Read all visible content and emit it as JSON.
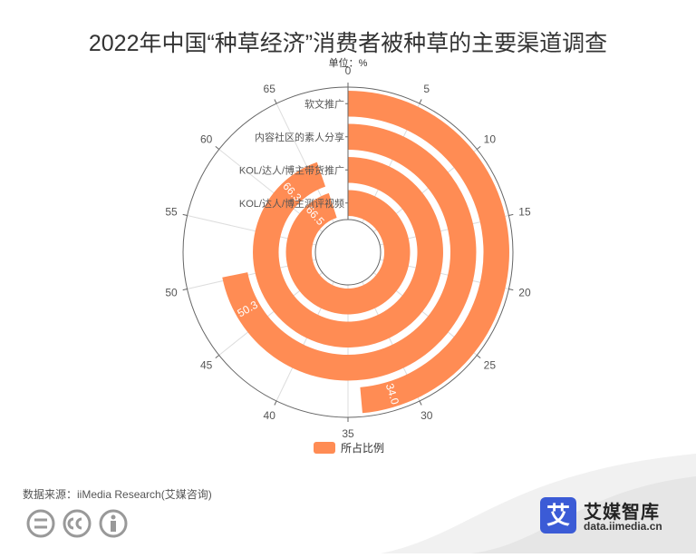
{
  "title": "2022年中国“种草经济”消费者被种草的主要渠道调查",
  "unit": "单位：%",
  "source": "数据来源：iiMedia Research(艾媒咨询)",
  "brand": {
    "logo_char": "艾",
    "name": "艾媒智库",
    "url": "data.iimedia.cn"
  },
  "colors": {
    "bar": "#FF8C54",
    "axis": "#666666",
    "grid": "#dddddd"
  },
  "chart_data": {
    "type": "polar-bar",
    "angle_axis": {
      "min": 0,
      "max": 70,
      "ticks": [
        0,
        5,
        10,
        15,
        20,
        25,
        30,
        35,
        40,
        45,
        50,
        55,
        60,
        65
      ]
    },
    "categories": [
      "软文推广",
      "内容社区的素人分享",
      "KOL/达人/博主带货推广",
      "KOL/达人/博主测评视频"
    ],
    "series": [
      {
        "name": "所占比例",
        "values": [
          34.0,
          50.3,
          66.3,
          66.5
        ]
      }
    ],
    "value_labels": [
      "34.0",
      "50.3",
      "66.3",
      "66.5"
    ],
    "legend": {
      "position": "bottom-center",
      "label": "所占比例"
    },
    "grid": true
  }
}
